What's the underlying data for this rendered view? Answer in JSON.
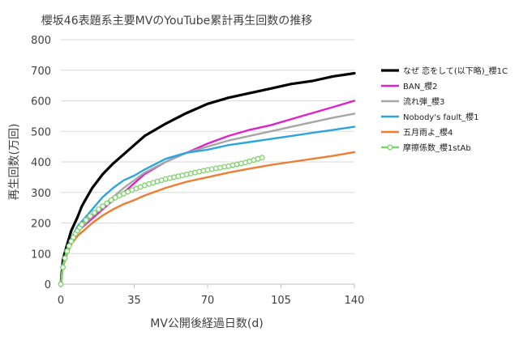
{
  "chart_data": {
    "type": "line",
    "title": "櫻坂46表題系主要MVのYouTube累計再生回数の推移",
    "xlabel": "MV公開後経過日数(d)",
    "ylabel": "再生回数(万回)",
    "xlim": [
      0,
      140
    ],
    "ylim": [
      0,
      800
    ],
    "xticks": [
      0,
      35,
      70,
      105,
      140
    ],
    "yticks": [
      0,
      100,
      200,
      300,
      400,
      500,
      600,
      700,
      800
    ],
    "grid": true,
    "legend_position": "right",
    "series": [
      {
        "name": "なぜ 恋をして(以下略)_櫻1C",
        "color": "#000000",
        "x": [
          0,
          1,
          3,
          5,
          8,
          10,
          15,
          20,
          25,
          30,
          35,
          40,
          50,
          60,
          70,
          80,
          90,
          100,
          110,
          120,
          130,
          140
        ],
        "values": [
          0,
          80,
          130,
          175,
          220,
          255,
          315,
          360,
          395,
          425,
          455,
          485,
          525,
          560,
          590,
          610,
          625,
          640,
          655,
          665,
          680,
          690
        ]
      },
      {
        "name": "BAN_櫻2",
        "color": "#dd22cc",
        "x": [
          0,
          1,
          3,
          5,
          8,
          10,
          15,
          20,
          25,
          30,
          35,
          40,
          50,
          60,
          70,
          80,
          90,
          100,
          110,
          120,
          130,
          140
        ],
        "values": [
          0,
          60,
          105,
          135,
          170,
          185,
          215,
          245,
          275,
          300,
          330,
          360,
          400,
          430,
          460,
          485,
          505,
          520,
          540,
          560,
          580,
          600
        ]
      },
      {
        "name": "流れ弾_櫻3",
        "color": "#a6a6a6",
        "x": [
          0,
          1,
          3,
          5,
          8,
          10,
          15,
          20,
          25,
          30,
          35,
          40,
          50,
          60,
          70,
          80,
          90,
          100,
          110,
          120,
          130,
          140
        ],
        "values": [
          0,
          62,
          110,
          140,
          172,
          188,
          222,
          255,
          285,
          315,
          340,
          365,
          400,
          430,
          450,
          470,
          485,
          500,
          515,
          530,
          545,
          558
        ]
      },
      {
        "name": "Nobody's fault_櫻1",
        "color": "#2aa6dc",
        "x": [
          0,
          1,
          3,
          5,
          8,
          10,
          15,
          20,
          25,
          30,
          35,
          40,
          50,
          60,
          70,
          80,
          90,
          100,
          110,
          120,
          130,
          140
        ],
        "values": [
          0,
          65,
          115,
          150,
          190,
          205,
          245,
          285,
          315,
          340,
          355,
          375,
          410,
          430,
          440,
          455,
          465,
          475,
          485,
          495,
          505,
          515
        ]
      },
      {
        "name": "五月雨よ_櫻4",
        "color": "#ed7d31",
        "x": [
          0,
          1,
          3,
          5,
          8,
          10,
          15,
          20,
          25,
          30,
          35,
          40,
          50,
          60,
          70,
          80,
          90,
          100,
          110,
          120,
          130,
          140
        ],
        "values": [
          0,
          55,
          100,
          130,
          158,
          170,
          200,
          225,
          245,
          262,
          275,
          290,
          315,
          335,
          350,
          365,
          378,
          390,
          400,
          410,
          420,
          432
        ]
      },
      {
        "name": "摩擦係数_櫻1stAb",
        "color": "#7fd36a",
        "markers": true,
        "x": [
          0,
          1,
          2,
          3,
          4,
          5,
          6,
          7,
          8,
          9,
          10,
          12,
          14,
          16,
          18,
          20,
          22,
          24,
          26,
          28,
          30,
          32,
          34,
          36,
          38,
          40,
          42,
          44,
          46,
          48,
          50,
          52,
          54,
          56,
          58,
          60,
          62,
          64,
          66,
          68,
          70,
          72,
          74,
          76,
          78,
          80,
          82,
          84,
          86,
          88,
          90,
          92,
          94,
          96
        ],
        "values": [
          0,
          55,
          85,
          108,
          125,
          140,
          153,
          165,
          175,
          185,
          195,
          210,
          223,
          234,
          245,
          255,
          265,
          275,
          283,
          290,
          296,
          302,
          308,
          313,
          318,
          323,
          328,
          332,
          336,
          340,
          344,
          347,
          350,
          353,
          356,
          359,
          362,
          365,
          368,
          371,
          374,
          376,
          379,
          381,
          384,
          386,
          389,
          392,
          395,
          398,
          402,
          406,
          410,
          414
        ]
      }
    ]
  }
}
